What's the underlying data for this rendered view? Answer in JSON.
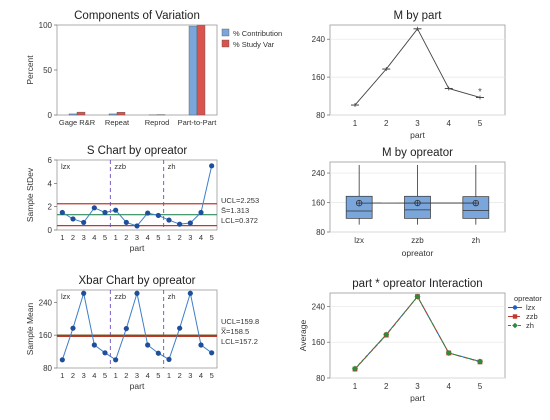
{
  "chart_data": [
    {
      "type": "bar",
      "title": "Components of Variation",
      "ylabel": "Percent",
      "xlabel": "",
      "ylim": [
        0,
        100
      ],
      "yticks": [
        0,
        50,
        100
      ],
      "categories": [
        "Gage R&R",
        "Repeat",
        "Reprod",
        "Part-to-Part"
      ],
      "series": [
        {
          "name": "% Contribution",
          "color": "#7aa6dc",
          "values": [
            1.2,
            1.2,
            0.1,
            98.8
          ]
        },
        {
          "name": "% Study Var",
          "color": "#d9534f",
          "values": [
            3.2,
            3.1,
            0.4,
            99.5
          ]
        }
      ],
      "legend": "top-right"
    },
    {
      "type": "line",
      "title": "M by part",
      "xlabel": "part",
      "ylabel": "",
      "categories": [
        "1",
        "2",
        "3",
        "4",
        "5"
      ],
      "values": [
        101,
        177,
        262,
        136,
        117
      ],
      "outlier": {
        "category": "5",
        "value": 131
      },
      "ylim": [
        80,
        270
      ],
      "yticks": [
        80,
        160,
        240
      ]
    },
    {
      "type": "line",
      "title": "S Chart by opreator",
      "ylabel": "Sample StDev",
      "xlabel": "part",
      "groups": [
        "lzx",
        "zzb",
        "zh"
      ],
      "categories": [
        "1",
        "2",
        "3",
        "4",
        "5",
        "1",
        "2",
        "3",
        "4",
        "5",
        "1",
        "2",
        "3",
        "4",
        "5"
      ],
      "values": [
        1.5,
        0.95,
        0.65,
        1.9,
        1.5,
        1.7,
        0.65,
        0.35,
        1.45,
        1.25,
        0.85,
        0.5,
        0.6,
        1.5,
        5.5
      ],
      "ucl": 2.253,
      "center": 1.313,
      "lcl": 0.372,
      "ucl_label": "UCL=2.253",
      "center_label": "S̄=1.313",
      "lcl_label": "LCL=0.372",
      "ylim": [
        0,
        6
      ],
      "yticks": [
        0,
        2,
        4,
        6
      ]
    },
    {
      "type": "box",
      "title": "M by opreator",
      "xlabel": "opreator",
      "ylabel": "",
      "categories": [
        "lzx",
        "zzb",
        "zh"
      ],
      "boxes": [
        {
          "min": 100,
          "q1": 117,
          "median": 137,
          "q3": 177,
          "max": 262,
          "mean": 158.4
        },
        {
          "min": 100,
          "q1": 117,
          "median": 140,
          "q3": 177,
          "max": 262,
          "mean": 158.6
        },
        {
          "min": 100,
          "q1": 117,
          "median": 138,
          "q3": 176,
          "max": 262,
          "mean": 158.5
        }
      ],
      "ylim": [
        80,
        270
      ],
      "yticks": [
        80,
        160,
        240
      ]
    },
    {
      "type": "line",
      "title": "Xbar Chart by opreator",
      "ylabel": "Sample Mean",
      "xlabel": "part",
      "groups": [
        "lzx",
        "zzb",
        "zh"
      ],
      "categories": [
        "1",
        "2",
        "3",
        "4",
        "5",
        "1",
        "2",
        "3",
        "4",
        "5",
        "1",
        "2",
        "3",
        "4",
        "5"
      ],
      "values": [
        100,
        177,
        262,
        136,
        117,
        100,
        176,
        262,
        136,
        116,
        101,
        177,
        262,
        136,
        117
      ],
      "ucl": 159.8,
      "center": 158.5,
      "lcl": 157.2,
      "ucl_label": "UCL=159.8",
      "center_label": "X̿=158.5",
      "lcl_label": "LCL=157.2",
      "ylim": [
        80,
        270
      ],
      "yticks": [
        80,
        160,
        240
      ]
    },
    {
      "type": "line",
      "title": "part * opreator Interaction",
      "ylabel": "Average",
      "xlabel": "part",
      "categories": [
        "1",
        "2",
        "3",
        "4",
        "5"
      ],
      "legend_title": "opreator",
      "series": [
        {
          "name": "lzx",
          "color": "#1f5fbf",
          "marker": "circle",
          "values": [
            100,
            177,
            262,
            136,
            117
          ]
        },
        {
          "name": "zzb",
          "color": "#c0392b",
          "marker": "square",
          "values": [
            100,
            176,
            262,
            136,
            116
          ]
        },
        {
          "name": "zh",
          "color": "#2e8b3a",
          "marker": "diamond",
          "values": [
            101,
            177,
            262,
            136,
            117
          ]
        }
      ],
      "ylim": [
        80,
        270
      ],
      "yticks": [
        80,
        160,
        240
      ]
    }
  ]
}
